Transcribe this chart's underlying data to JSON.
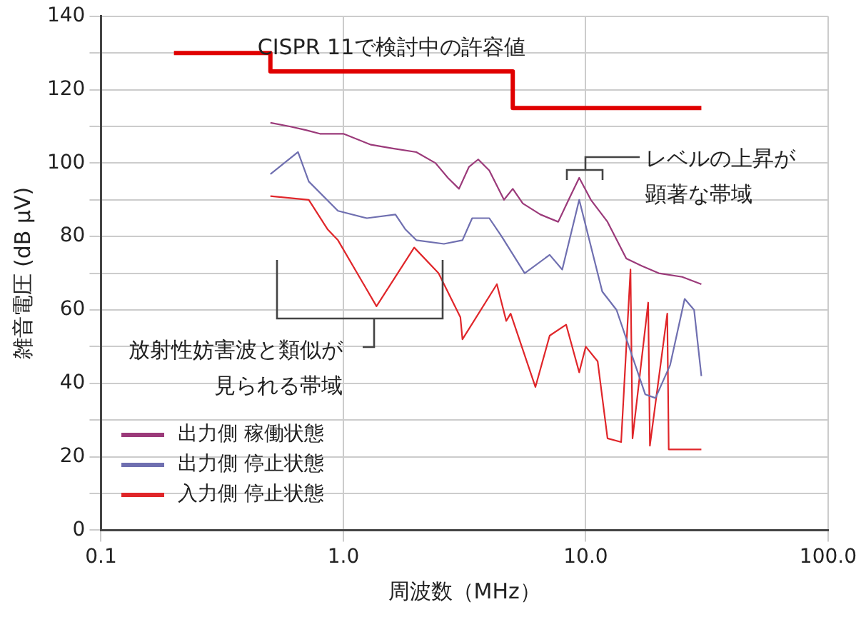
{
  "chart_data": {
    "type": "line",
    "xlabel": "周波数（MHz）",
    "ylabel": "雑音電圧 (dB μV)",
    "log": "x",
    "xlim": [
      0.1,
      100
    ],
    "xticks": [
      {
        "value": 0.1,
        "label": "0.1"
      },
      {
        "value": 1,
        "label": "1.0"
      },
      {
        "value": 10,
        "label": "10.0"
      },
      {
        "value": 100,
        "label": "100.0"
      }
    ],
    "ylim": [
      0,
      140
    ],
    "yticks": [
      0,
      {
        "value": 10,
        "label": null
      },
      20,
      {
        "value": 30,
        "label": null
      },
      40,
      {
        "value": 50,
        "label": null
      },
      60,
      {
        "value": 70,
        "label": null
      },
      80,
      {
        "value": 90,
        "label": null
      },
      100,
      {
        "value": 110,
        "label": null
      },
      120,
      {
        "value": 130,
        "label": null
      },
      140
    ],
    "grid": true,
    "legend": "bottom left",
    "marker": "none",
    "line_style": "solid",
    "series": [
      {
        "name": "出力側 稼働状態",
        "color": "#9b3a7a",
        "x": [
          0.5,
          0.6,
          0.7,
          0.8,
          1.0,
          1.3,
          1.6,
          2.0,
          2.4,
          2.7,
          3.0,
          3.3,
          3.6,
          4.0,
          4.6,
          5.0,
          5.5,
          6.5,
          7.7,
          8.5,
          9.4,
          10.5,
          12.3,
          14.7,
          17,
          20,
          25,
          30
        ],
        "values": [
          111,
          110,
          109,
          108,
          108,
          105,
          104,
          103,
          100,
          96,
          93,
          99,
          101,
          98,
          90,
          93,
          89,
          86,
          84,
          90,
          96,
          90,
          84,
          74,
          72,
          70,
          69,
          67
        ]
      },
      {
        "name": "出力側 停止状態",
        "color": "#6f6fb0",
        "x": [
          0.5,
          0.65,
          0.72,
          0.95,
          1.25,
          1.64,
          1.8,
          2.0,
          2.6,
          3.1,
          3.4,
          4.0,
          4.5,
          5.6,
          7.1,
          8.0,
          9.4,
          11.7,
          13.4,
          17.6,
          19.4,
          22.3,
          25.6,
          28,
          30
        ],
        "values": [
          97,
          103,
          95,
          87,
          85,
          86,
          82,
          79,
          78,
          79,
          85,
          85,
          80,
          70,
          75,
          71,
          90,
          65,
          60,
          37,
          36,
          45,
          63,
          60,
          42
        ]
      },
      {
        "name": "入力側 停止状態",
        "color": "#e0262a",
        "x": [
          0.5,
          0.72,
          0.86,
          0.95,
          1.37,
          1.96,
          2.47,
          3.04,
          3.1,
          4.3,
          4.7,
          4.9,
          6.2,
          7.1,
          8.3,
          9.4,
          10,
          11.2,
          12.3,
          14,
          15.3,
          15.6,
          18.1,
          18.4,
          21.7,
          22,
          25,
          30
        ],
        "values": [
          91,
          90,
          82,
          79,
          61,
          77,
          70,
          58,
          52,
          67,
          57,
          59,
          39,
          53,
          56,
          43,
          50,
          46,
          25,
          24,
          71,
          25,
          62,
          23,
          59,
          22,
          22,
          22
        ]
      },
      {
        "name": "CISPR 11で検討中の許容値",
        "color": "#e00000",
        "x": [
          0.2,
          0.5,
          0.5,
          5,
          5,
          30
        ],
        "values": [
          130,
          130,
          125,
          125,
          115,
          115
        ]
      }
    ],
    "annotations": [
      "レベルの上昇が顕著な帯域",
      "放射性妨害波と類似が見られる帯域"
    ]
  }
}
